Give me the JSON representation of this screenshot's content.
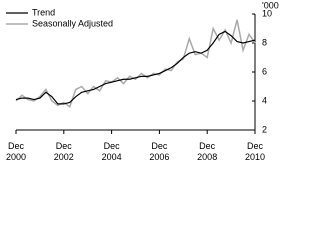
{
  "chart_data": {
    "type": "line",
    "y_unit": "'000",
    "categories": [
      "Dec\n2000",
      null,
      null,
      null,
      null,
      null,
      null,
      null,
      "Dec\n2002",
      null,
      null,
      null,
      null,
      null,
      null,
      null,
      "Dec\n2004",
      null,
      null,
      null,
      null,
      null,
      null,
      null,
      "Dec\n2006",
      null,
      null,
      null,
      null,
      null,
      null,
      null,
      "Dec\n2008",
      null,
      null,
      null,
      null,
      null,
      null,
      null,
      "Dec\n2010"
    ],
    "series": [
      {
        "name": "Trend",
        "color": "#000000",
        "width": 1.2,
        "values": [
          4.1,
          4.2,
          4.2,
          4.1,
          4.2,
          4.6,
          4.3,
          3.8,
          3.8,
          3.9,
          4.3,
          4.6,
          4.7,
          4.8,
          5.0,
          5.2,
          5.3,
          5.4,
          5.5,
          5.5,
          5.6,
          5.7,
          5.7,
          5.8,
          5.9,
          6.1,
          6.3,
          6.6,
          7.0,
          7.3,
          7.4,
          7.3,
          7.5,
          8.0,
          8.6,
          8.8,
          8.5,
          8.1,
          8.0,
          8.1,
          8.2
        ]
      },
      {
        "name": "Seasonally Adjusted",
        "color": "#aaaaaa",
        "width": 1.5,
        "values": [
          4.0,
          4.4,
          4.1,
          4.0,
          4.3,
          4.8,
          4.0,
          3.7,
          3.9,
          3.6,
          4.8,
          5.0,
          4.5,
          5.0,
          4.7,
          5.4,
          5.3,
          5.6,
          5.2,
          5.7,
          5.5,
          5.9,
          5.6,
          5.9,
          5.8,
          6.2,
          6.1,
          6.7,
          6.9,
          8.3,
          7.2,
          7.3,
          7.0,
          9.0,
          8.2,
          8.9,
          8.0,
          9.6,
          7.5,
          8.6,
          8.0
        ]
      }
    ],
    "ylim": [
      2,
      10
    ],
    "yticks": [
      2,
      4,
      6,
      8,
      10
    ],
    "legend": "upper left"
  }
}
